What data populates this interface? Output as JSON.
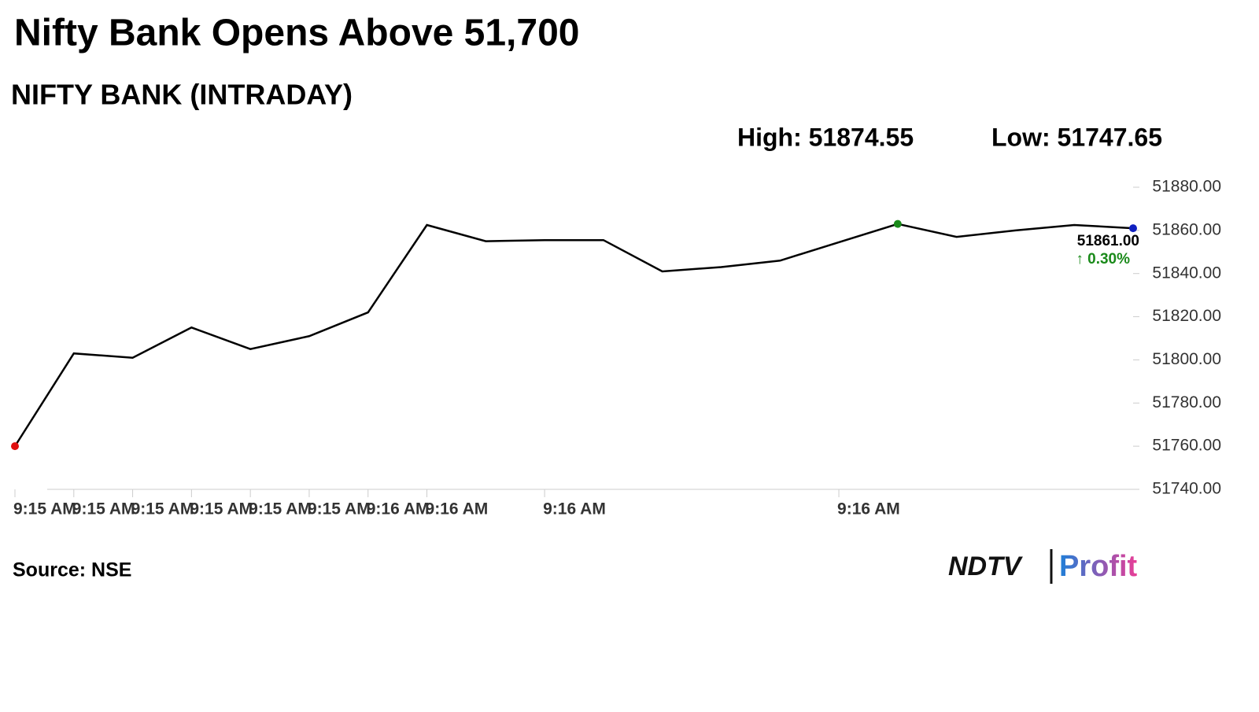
{
  "chart_data": {
    "type": "line",
    "title": "Nifty Bank Opens Above 51,700",
    "subtitle": "NIFTY BANK (INTRADAY)",
    "high_label": "High: 51874.55",
    "low_label": "Low: 51747.65",
    "categories": [
      "9:15 AM",
      "9:15 AM",
      "9:15 AM",
      "9:15 AM",
      "9:15 AM",
      "9:15 AM",
      "9:16 AM",
      "9:16 AM",
      null,
      "9:16 AM",
      null,
      null,
      null,
      null,
      "9:16 AM",
      null,
      null,
      null,
      null,
      null
    ],
    "series": [
      {
        "name": "NIFTY BANK",
        "color": "#000000",
        "values": [
          51760,
          51803,
          51801,
          51815,
          51805,
          51811,
          51822,
          51862.5,
          51855,
          51855.5,
          51855.5,
          51841,
          51843,
          51846,
          51854.5,
          51863,
          51857,
          51860,
          51862.5,
          51861
        ]
      }
    ],
    "markers": [
      {
        "at": 0,
        "color": "#e01010"
      },
      {
        "at": 15,
        "color": "#1a8a1a"
      },
      {
        "at": 19,
        "color": "#1020c0"
      }
    ],
    "last_label": "51861.00",
    "change_label": "↑ 0.30%",
    "change_color": "#1a8a1a",
    "ylim": [
      51740,
      51880
    ],
    "yticks": [
      {
        "value": 51740,
        "label": "51740.00"
      },
      {
        "value": 51760,
        "label": "51760.00"
      },
      {
        "value": 51780,
        "label": "51780.00"
      },
      {
        "value": 51800,
        "label": "51800.00"
      },
      {
        "value": 51820,
        "label": "51820.00"
      },
      {
        "value": 51840,
        "label": "51840.00"
      },
      {
        "value": 51860,
        "label": "51860.00"
      },
      {
        "value": 51880,
        "label": "51880.00"
      }
    ],
    "source": "Source: NSE",
    "logo": [
      "NDTV",
      "Profit"
    ]
  }
}
